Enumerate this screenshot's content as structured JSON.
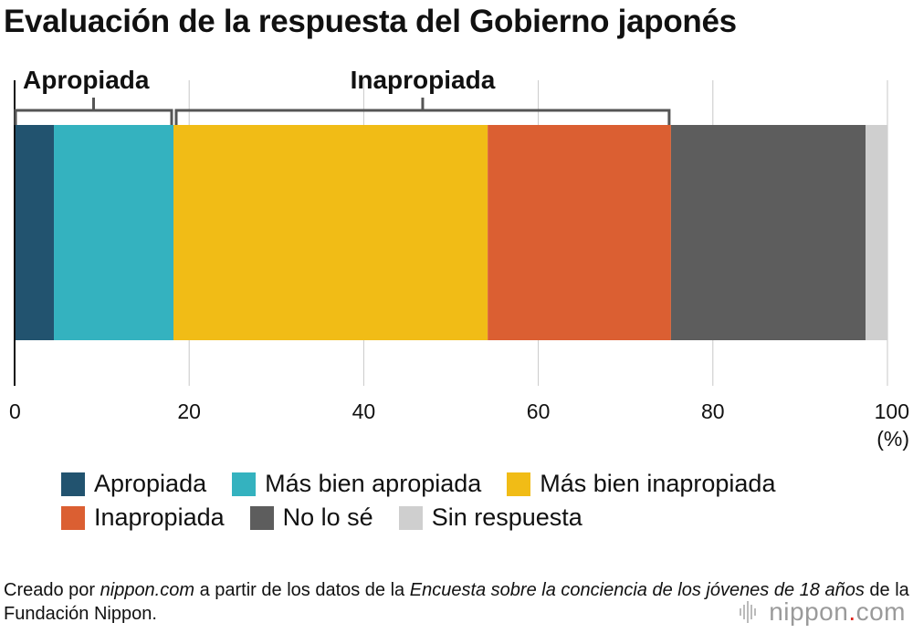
{
  "title": "Evaluación de la respuesta del Gobierno japonés",
  "chart_data": {
    "type": "bar",
    "orientation": "horizontal-stacked",
    "title": "Evaluación de la respuesta del Gobierno japonés",
    "categories": [
      ""
    ],
    "series": [
      {
        "name": "Apropiada",
        "values": [
          4.5
        ],
        "color": "#22536f"
      },
      {
        "name": "Más bien apropiada",
        "values": [
          13.7
        ],
        "color": "#34b2bf"
      },
      {
        "name": "Más bien inapropiada",
        "values": [
          36.0
        ],
        "color": "#f1bc16"
      },
      {
        "name": "Inapropiada",
        "values": [
          21.0
        ],
        "color": "#db5f32"
      },
      {
        "name": "No lo sé",
        "values": [
          22.3
        ],
        "color": "#5d5d5d"
      },
      {
        "name": "Sin respuesta",
        "values": [
          2.5
        ],
        "color": "#cfcfcf"
      }
    ],
    "xlim": [
      0,
      100
    ],
    "xticks": [
      "0",
      "20",
      "40",
      "60",
      "80",
      "100"
    ],
    "xunit": "(%)",
    "grid": true,
    "groups": [
      {
        "label": "Apropiada",
        "from": 0,
        "to": 18.2
      },
      {
        "label": "Inapropiada",
        "from": 18.2,
        "to": 75.2
      }
    ]
  },
  "legend": {
    "rows": [
      [
        {
          "label": "Apropiada",
          "color": "#22536f"
        },
        {
          "label": "Más bien apropiada",
          "color": "#34b2bf"
        },
        {
          "label": "Más bien inapropiada",
          "color": "#f1bc16"
        }
      ],
      [
        {
          "label": "Inapropiada",
          "color": "#db5f32"
        },
        {
          "label": "No lo sé",
          "color": "#5d5d5d"
        },
        {
          "label": "Sin respuesta",
          "color": "#cfcfcf"
        }
      ]
    ]
  },
  "source": {
    "t1": "Creado por ",
    "t2": "nippon.com",
    "t3": " a partir de los datos de la ",
    "t4": "Encuesta sobre la conciencia de los jóvenes de 18 años",
    "t5": " de la Fundación Nippon."
  },
  "logo": {
    "name": "nippon",
    "dot": ".",
    "suffix": "com"
  }
}
